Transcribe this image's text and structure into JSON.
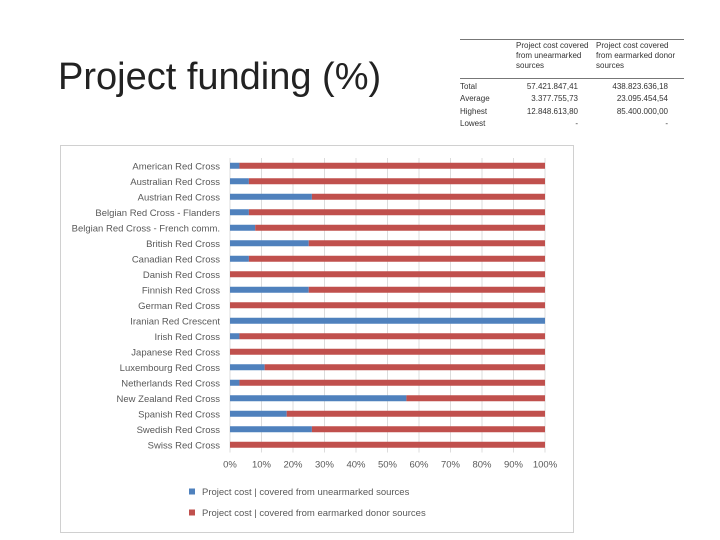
{
  "slide": {
    "title": "Project funding (%)"
  },
  "stats_table": {
    "headers": [
      "Project cost covered from unearmarked sources",
      "Project cost covered from earmarked donor sources"
    ],
    "rows": [
      {
        "label": "Total",
        "unearmarked": "57.421.847,41",
        "earmarked": "438.823.636,18"
      },
      {
        "label": "Average",
        "unearmarked": "3.377.755,73",
        "earmarked": "23.095.454,54"
      },
      {
        "label": "Highest",
        "unearmarked": "12.848.613,80",
        "earmarked": "85.400.000,00"
      },
      {
        "label": "Lowest",
        "unearmarked": "-",
        "earmarked": "-"
      }
    ]
  },
  "chart_data": {
    "type": "bar",
    "orientation": "horizontal",
    "stacked": "percent",
    "categories": [
      "American Red Cross",
      "Australian Red Cross",
      "Austrian Red Cross",
      "Belgian Red Cross - Flanders",
      "Belgian Red Cross - French comm.",
      "British Red Cross",
      "Canadian Red Cross",
      "Danish Red Cross",
      "Finnish Red Cross",
      "German Red Cross",
      "Iranian Red Crescent",
      "Irish Red Cross",
      "Japanese Red Cross",
      "Luxembourg Red Cross",
      "Netherlands Red Cross",
      "New Zealand Red Cross",
      "Spanish Red Cross",
      "Swedish Red Cross",
      "Swiss Red Cross"
    ],
    "series": [
      {
        "name": "Project cost | covered from unearmarked sources",
        "color": "#4f81bd",
        "values": [
          3,
          6,
          26,
          6,
          8,
          25,
          6,
          0,
          25,
          0,
          100,
          3,
          0,
          11,
          3,
          56,
          18,
          26,
          0
        ]
      },
      {
        "name": "Project cost | covered from earmarked donor sources",
        "color": "#c0504d",
        "values": [
          97,
          94,
          74,
          94,
          92,
          75,
          94,
          100,
          75,
          100,
          0,
          97,
          100,
          89,
          97,
          44,
          82,
          74,
          100
        ]
      }
    ],
    "xlim": [
      0,
      100
    ],
    "x_ticks": [
      "0%",
      "10%",
      "20%",
      "30%",
      "40%",
      "50%",
      "60%",
      "70%",
      "80%",
      "90%",
      "100%"
    ],
    "grid": true,
    "legend_position": "bottom"
  }
}
